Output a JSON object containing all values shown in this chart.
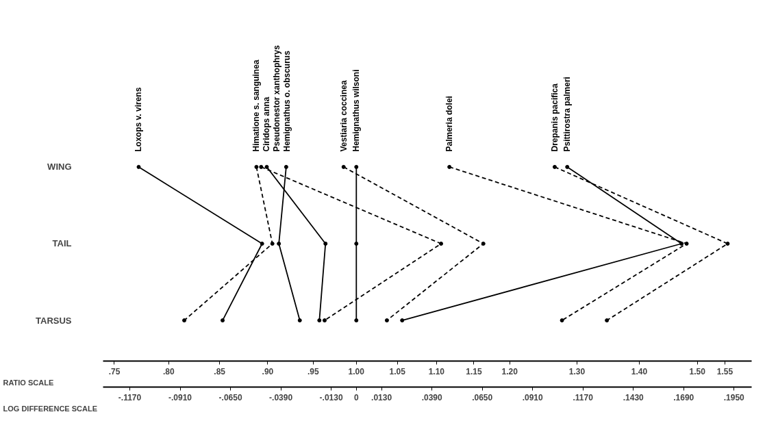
{
  "chart_data": {
    "type": "line",
    "orientation": "horizontal",
    "log": "x",
    "marker": "circle",
    "grid": false,
    "categories": [
      "WING",
      "TAIL",
      "TARSUS"
    ],
    "xlabel": "RATIO SCALE",
    "x2label": "LOG DIFFERENCE SCALE",
    "xlim": [
      0.74,
      1.6
    ],
    "xticks": [
      {
        "value": 0.75,
        "label": ".75"
      },
      {
        "value": 0.8,
        "label": ".80"
      },
      {
        "value": 0.85,
        "label": ".85"
      },
      {
        "value": 0.9,
        "label": ".90"
      },
      {
        "value": 0.95,
        "label": ".95"
      },
      {
        "value": 1.0,
        "label": "1.00"
      },
      {
        "value": 1.05,
        "label": "1.05"
      },
      {
        "value": 1.1,
        "label": "1.10"
      },
      {
        "value": 1.15,
        "label": "1.15"
      },
      {
        "value": 1.2,
        "label": "1.20"
      },
      {
        "value": 1.3,
        "label": "1.30"
      },
      {
        "value": 1.4,
        "label": "1.40"
      },
      {
        "value": 1.5,
        "label": "1.50"
      },
      {
        "value": 1.55,
        "label": "1.55"
      }
    ],
    "x2lim": [
      -0.1308,
      0.2041
    ],
    "x2ticks": [
      {
        "value": -0.117,
        "label": "-.1170"
      },
      {
        "value": -0.091,
        "label": "-.0910"
      },
      {
        "value": -0.065,
        "label": "-.0650"
      },
      {
        "value": -0.039,
        "label": "-.0390"
      },
      {
        "value": -0.013,
        "label": "-.0130"
      },
      0,
      {
        "value": 0.013,
        "label": ".0130"
      },
      {
        "value": 0.039,
        "label": ".0390"
      },
      {
        "value": 0.065,
        "label": ".0650"
      },
      {
        "value": 0.091,
        "label": ".0910"
      },
      {
        "value": 0.117,
        "label": ".1170"
      },
      {
        "value": 0.143,
        "label": ".1430"
      },
      {
        "value": 0.169,
        "label": ".1690"
      },
      {
        "value": 0.195,
        "label": ".1950"
      }
    ],
    "series": [
      {
        "name": "Loxops v. virens",
        "color": "#000000",
        "line_style": "solid",
        "values": [
          0.772,
          0.894,
          0.853
        ]
      },
      {
        "name": "Himatione s. sanguinea",
        "color": "#000000",
        "line_style": "dashed",
        "values": [
          0.888,
          0.905,
          0.815
        ]
      },
      {
        "name": "Ciridops anna",
        "color": "#000000",
        "line_style": "dashed",
        "values": [
          0.893,
          1.106,
          0.963
        ]
      },
      {
        "name": "Pseudonestor xanthophrys",
        "color": "#000000",
        "line_style": "solid",
        "values": [
          0.899,
          0.964,
          0.957
        ]
      },
      {
        "name": "Hemignathus o. obscurus",
        "color": "#000000",
        "line_style": "solid",
        "values": [
          0.92,
          0.912,
          0.935
        ]
      },
      {
        "name": "Vestiaria coccinea",
        "color": "#000000",
        "line_style": "dashed",
        "values": [
          0.985,
          1.163,
          1.037
        ]
      },
      {
        "name": "Hemignathus wilsoni",
        "color": "#000000",
        "line_style": "solid",
        "values": [
          1.0,
          1.0,
          1.0
        ]
      },
      {
        "name": "Palmeria dolei",
        "color": "#000000",
        "line_style": "dashed",
        "values": [
          1.117,
          1.481,
          1.277
        ]
      },
      {
        "name": "Drepanis pacifica",
        "color": "#000000",
        "line_style": "dashed",
        "values": [
          1.266,
          1.555,
          1.347
        ]
      },
      {
        "name": "Psittirostra palmeri",
        "color": "#000000",
        "line_style": "solid",
        "values": [
          1.285,
          1.472,
          1.056
        ]
      }
    ]
  }
}
